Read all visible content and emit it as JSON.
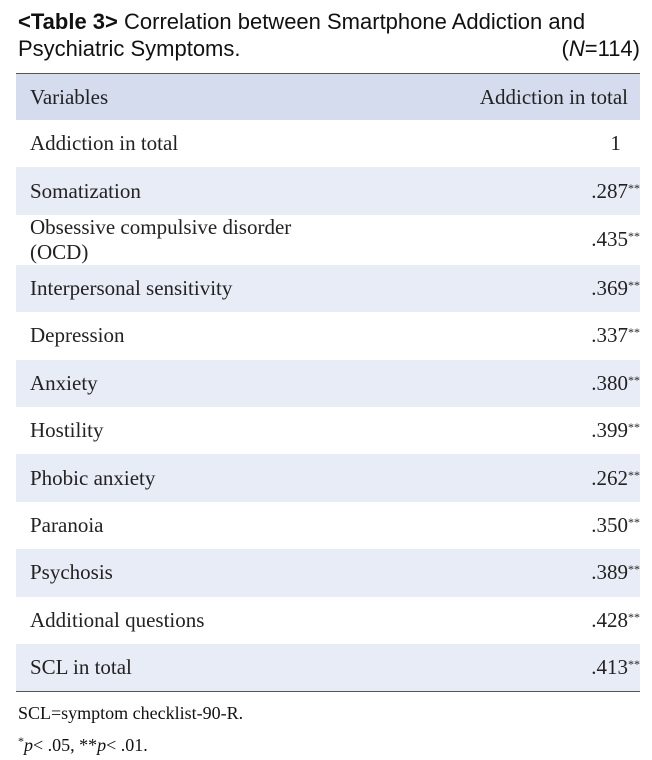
{
  "header": {
    "label": "<Table 3>",
    "line1": "Correlation between Smartphone Addiction and",
    "line2": "Psychiatric Symptoms.",
    "sample": [
      "(",
      "N",
      "=114)"
    ]
  },
  "table": {
    "columns": [
      "Variables",
      "Addiction in total"
    ],
    "rows": [
      {
        "variable": "Addiction in total",
        "value": "1"
      },
      {
        "variable": "Somatization",
        "value": ".287",
        "sig": "**"
      },
      {
        "variable": "Obsessive compulsive disorder (OCD)",
        "value": ".435",
        "sig": "**"
      },
      {
        "variable": "Interpersonal sensitivity",
        "value": ".369",
        "sig": "**"
      },
      {
        "variable": "Depression",
        "value": ".337",
        "sig": "**"
      },
      {
        "variable": "Anxiety",
        "value": ".380",
        "sig": "**"
      },
      {
        "variable": "Hostility",
        "value": ".399",
        "sig": "**"
      },
      {
        "variable": "Phobic anxiety",
        "value": ".262",
        "sig": "**"
      },
      {
        "variable": "Paranoia",
        "value": ".350",
        "sig": "**"
      },
      {
        "variable": "Psychosis",
        "value": ".389",
        "sig": "**"
      },
      {
        "variable": "Additional questions",
        "value": ".428",
        "sig": "**"
      },
      {
        "variable": "SCL in total",
        "value": ".413",
        "sig": "**"
      }
    ]
  },
  "notes": {
    "line1": "SCL=symptom checklist-90-R.",
    "line2": [
      "*",
      "p",
      "< .05, **",
      "p",
      "< .01."
    ]
  }
}
